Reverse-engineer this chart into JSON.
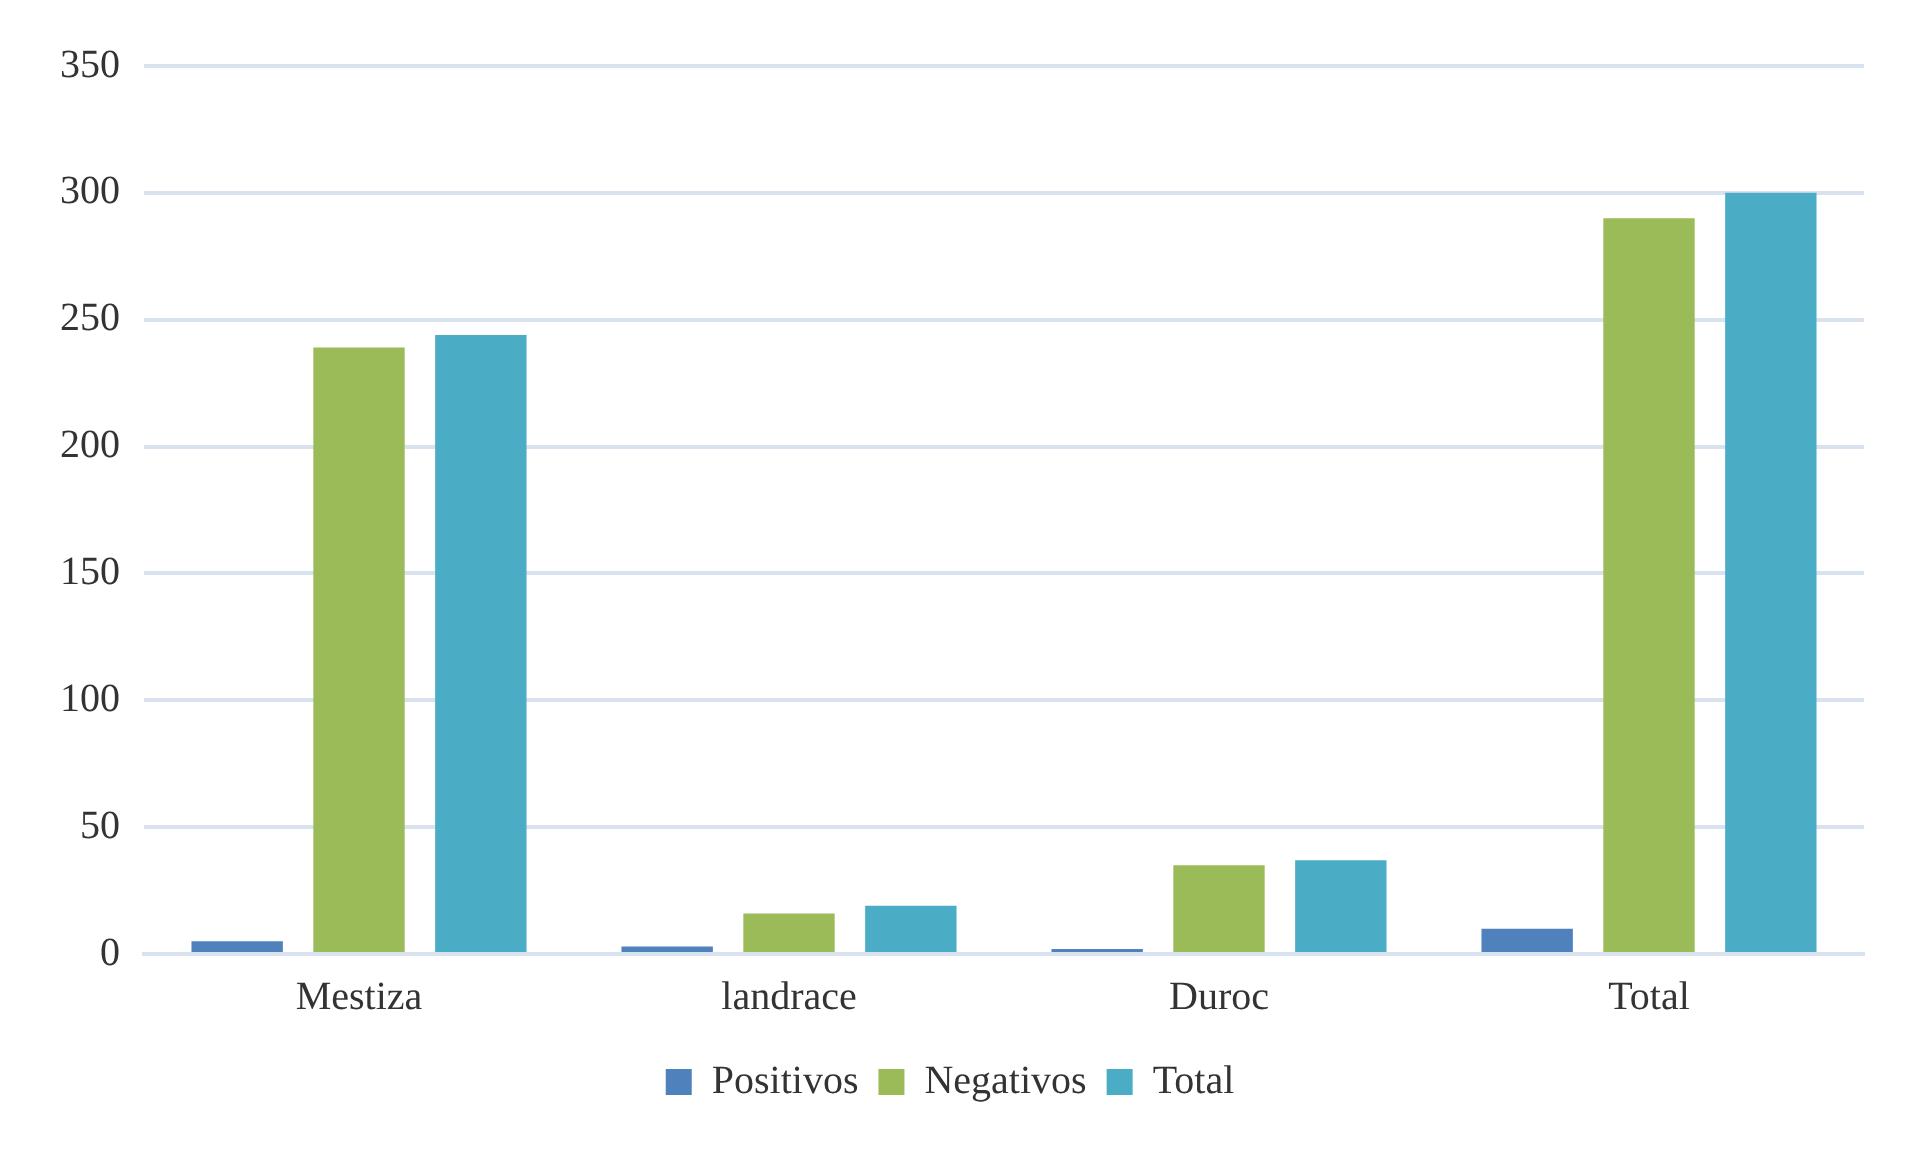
{
  "chart_data": {
    "type": "bar",
    "categories": [
      "Mestiza",
      "landrace",
      "Duroc",
      "Total"
    ],
    "series": [
      {
        "name": "Positivos",
        "color": "#4f81bd",
        "values": [
          5,
          3,
          2,
          10
        ]
      },
      {
        "name": "Negativos",
        "color": "#9bbb59",
        "values": [
          239,
          16,
          35,
          290
        ]
      },
      {
        "name": "Total",
        "color": "#4bacc6",
        "values": [
          244,
          19,
          37,
          300
        ]
      }
    ],
    "ylim": [
      0,
      350
    ],
    "yticks": [
      0,
      50,
      100,
      150,
      200,
      250,
      300,
      350
    ],
    "grid": "y",
    "legend": "bottom"
  }
}
